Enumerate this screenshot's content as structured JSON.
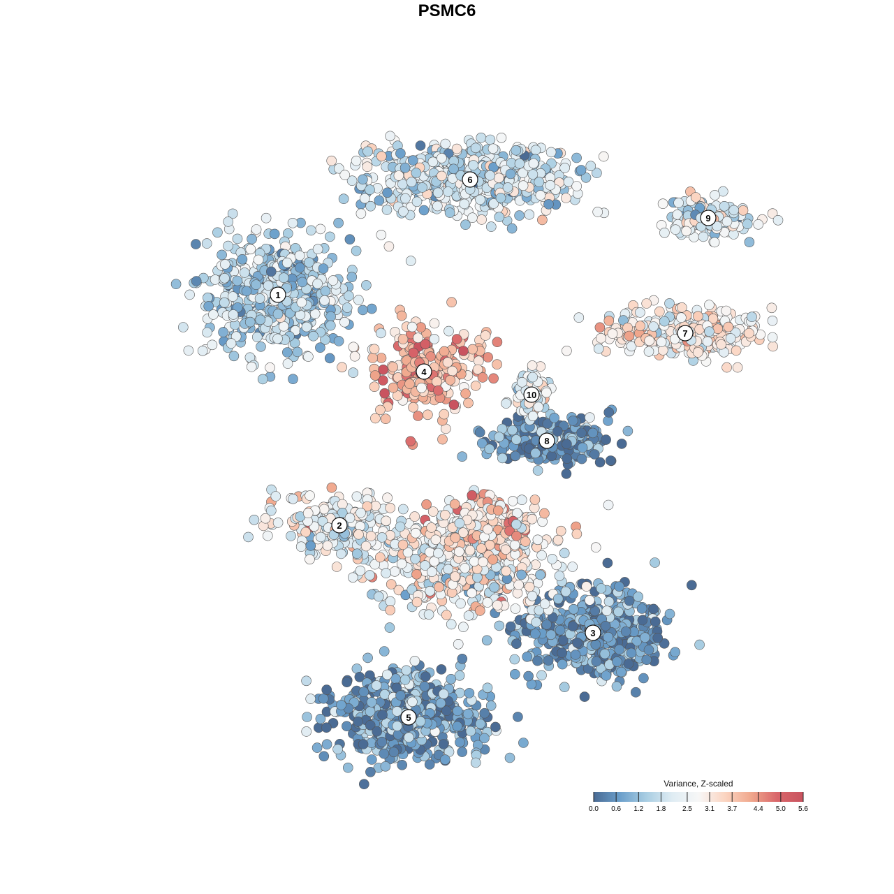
{
  "chart_data": {
    "type": "scatter",
    "title": "PSMC6",
    "xlabel": "",
    "ylabel": "",
    "grid": false,
    "axes_visible": false,
    "point_style": "filled circles with dark grey outline",
    "color_scale": {
      "title": "Variance, Z-scaled",
      "min": 0.0,
      "max": 5.6,
      "ticks": [
        "0.0",
        "0.6",
        "1.2",
        "1.8",
        "2.5",
        "3.1",
        "3.7",
        "4.4",
        "5.0",
        "5.6"
      ],
      "tick_values": [
        0.0,
        0.6,
        1.2,
        1.8,
        2.5,
        3.1,
        3.7,
        4.4,
        5.0,
        5.6
      ],
      "colors": [
        "#4a6b94",
        "#6b9fcb",
        "#a8cde2",
        "#dfecf3",
        "#f7f7f7",
        "#fbd5c2",
        "#f0a88d",
        "#d9666a",
        "#c9535f"
      ],
      "placement": "bottom-right"
    },
    "clusters": [
      {
        "label": "1",
        "x": -22,
        "y": 18,
        "level": 1.6
      },
      {
        "label": "2",
        "x": -14,
        "y": -12,
        "level": 2.5
      },
      {
        "label": "3",
        "x": 19,
        "y": -26,
        "level": 0.6
      },
      {
        "label": "4",
        "x": -3,
        "y": 8,
        "level": 3.9
      },
      {
        "label": "5",
        "x": -5,
        "y": -37,
        "level": 0.8
      },
      {
        "label": "6",
        "x": 3,
        "y": 33,
        "level": 2.0
      },
      {
        "label": "7",
        "x": 31,
        "y": 13,
        "level": 2.9
      },
      {
        "label": "8",
        "x": 13,
        "y": -1,
        "level": 0.6
      },
      {
        "label": "9",
        "x": 34,
        "y": 28,
        "level": 2.4
      },
      {
        "label": "10",
        "x": 11,
        "y": 5,
        "level": 2.4
      }
    ]
  }
}
